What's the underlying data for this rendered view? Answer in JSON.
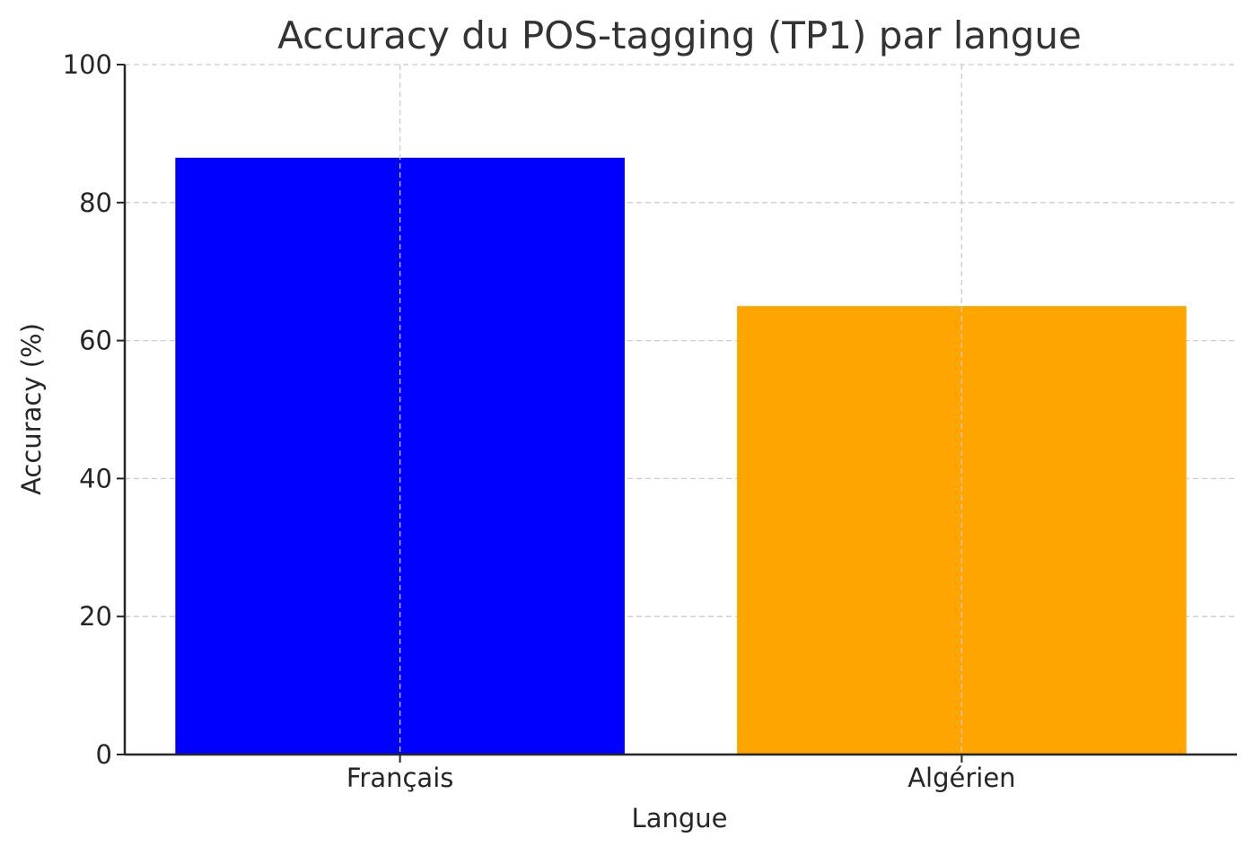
{
  "chart_data": {
    "type": "bar",
    "title": "Accuracy du POS-tagging (TP1) par langue",
    "xlabel": "Langue",
    "ylabel": "Accuracy (%)",
    "categories": [
      "Français",
      "Algérien"
    ],
    "values": [
      86.5,
      65
    ],
    "colors": [
      "#0000ff",
      "#ffa500"
    ],
    "ylim": [
      0,
      100
    ],
    "yticks": [
      0,
      20,
      40,
      60,
      80,
      100
    ],
    "grid": true,
    "legend": "none"
  }
}
